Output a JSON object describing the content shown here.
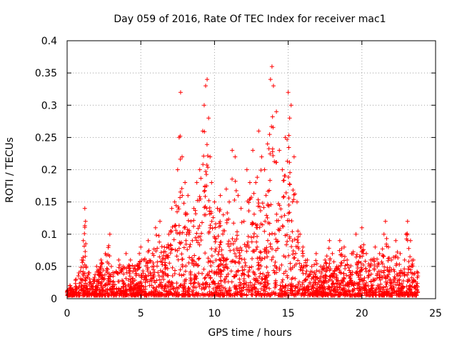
{
  "chart_data": {
    "type": "scatter",
    "title": "Day 059 of 2016, Rate Of TEC Index for receiver mac1",
    "xlabel": "GPS time / hours",
    "ylabel": "ROTI / TECUs",
    "xlim": [
      0,
      25
    ],
    "ylim": [
      0,
      0.4
    ],
    "xticks": [
      0,
      5,
      10,
      15,
      20,
      25
    ],
    "xtick_labels": [
      "0",
      "5",
      "10",
      "15",
      "20",
      "25"
    ],
    "yticks": [
      0,
      0.05,
      0.1,
      0.15,
      0.2,
      0.25,
      0.3,
      0.35,
      0.4
    ],
    "ytick_labels": [
      "0",
      "0.05",
      "0.1",
      "0.15",
      "0.2",
      "0.25",
      "0.3",
      "0.35",
      "0.4"
    ],
    "grid": true,
    "marker": "+",
    "color": "#ff0000",
    "series": [
      {
        "name": "ROTI",
        "x": [
          0.0,
          0.2,
          0.4,
          0.6,
          0.8,
          1.0,
          1.1,
          1.2,
          1.25,
          1.3,
          1.5,
          1.8,
          2.0,
          2.3,
          2.6,
          2.9,
          3.0,
          3.2,
          3.5,
          3.8,
          4.0,
          4.3,
          4.6,
          4.9,
          5.0,
          5.2,
          5.5,
          5.8,
          6.0,
          6.3,
          6.6,
          6.9,
          7.1,
          7.3,
          7.5,
          7.6,
          7.7,
          7.8,
          8.0,
          8.2,
          8.4,
          8.6,
          8.8,
          9.0,
          9.2,
          9.3,
          9.4,
          9.5,
          9.6,
          9.7,
          9.8,
          10.0,
          10.2,
          10.4,
          10.6,
          10.8,
          11.0,
          11.2,
          11.4,
          11.6,
          11.8,
          12.0,
          12.2,
          12.4,
          12.6,
          12.8,
          13.0,
          13.2,
          13.4,
          13.6,
          13.8,
          13.9,
          14.0,
          14.2,
          14.4,
          14.6,
          14.8,
          15.0,
          15.1,
          15.2,
          15.4,
          15.6,
          15.8,
          16.0,
          16.3,
          16.6,
          16.9,
          17.2,
          17.5,
          17.8,
          18.0,
          18.3,
          18.5,
          18.8,
          19.0,
          19.3,
          19.6,
          19.9,
          20.0,
          20.3,
          20.6,
          20.9,
          21.2,
          21.5,
          21.6,
          21.8,
          22.0,
          22.3,
          22.6,
          22.9,
          23.0,
          23.1,
          23.3,
          23.5,
          23.8
        ],
        "y": [
          0.01,
          0.02,
          0.015,
          0.03,
          0.04,
          0.06,
          0.09,
          0.14,
          0.12,
          0.05,
          0.04,
          0.03,
          0.05,
          0.06,
          0.07,
          0.1,
          0.05,
          0.04,
          0.06,
          0.05,
          0.07,
          0.06,
          0.05,
          0.07,
          0.08,
          0.06,
          0.09,
          0.07,
          0.11,
          0.12,
          0.08,
          0.1,
          0.14,
          0.15,
          0.2,
          0.25,
          0.32,
          0.22,
          0.18,
          0.16,
          0.12,
          0.14,
          0.18,
          0.2,
          0.26,
          0.3,
          0.33,
          0.34,
          0.28,
          0.22,
          0.18,
          0.15,
          0.14,
          0.16,
          0.13,
          0.17,
          0.15,
          0.23,
          0.22,
          0.16,
          0.14,
          0.12,
          0.2,
          0.18,
          0.23,
          0.18,
          0.26,
          0.22,
          0.2,
          0.24,
          0.34,
          0.36,
          0.33,
          0.29,
          0.23,
          0.2,
          0.25,
          0.32,
          0.28,
          0.3,
          0.22,
          0.15,
          0.1,
          0.08,
          0.06,
          0.05,
          0.07,
          0.05,
          0.06,
          0.09,
          0.07,
          0.05,
          0.09,
          0.08,
          0.06,
          0.07,
          0.1,
          0.08,
          0.11,
          0.07,
          0.06,
          0.08,
          0.07,
          0.1,
          0.12,
          0.08,
          0.06,
          0.09,
          0.07,
          0.06,
          0.1,
          0.12,
          0.09,
          0.06,
          0.04
        ]
      }
    ]
  }
}
